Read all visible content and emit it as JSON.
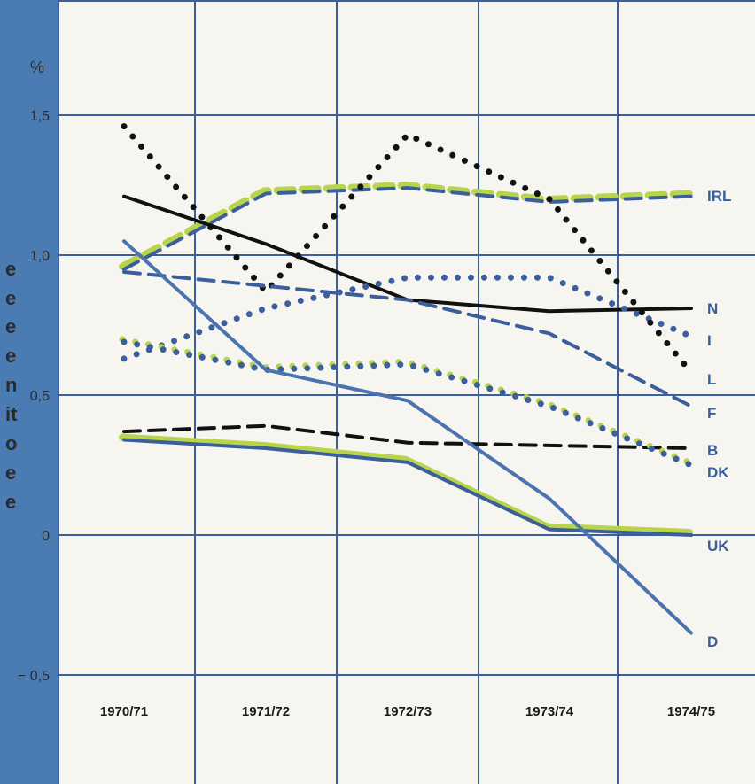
{
  "chart_data": {
    "type": "line",
    "title": "",
    "xlabel": "",
    "ylabel": "%",
    "categories": [
      "1970/71",
      "1971/72",
      "1972/73",
      "1973/74",
      "1974/75"
    ],
    "y_ticks": [
      "1,5",
      "1,0",
      "0,5",
      "0",
      "− 0,5"
    ],
    "ylim": [
      -0.5,
      1.5
    ],
    "grid": true,
    "series": [
      {
        "name": "IRL",
        "style": "dashed",
        "color": "#3b5f9c",
        "highlight": "#b8d44a",
        "values": [
          0.95,
          1.22,
          1.24,
          1.19,
          1.21
        ]
      },
      {
        "name": "N",
        "style": "solid",
        "color": "#111111",
        "values": [
          1.21,
          1.04,
          0.84,
          0.8,
          0.81
        ]
      },
      {
        "name": "I",
        "style": "dotted",
        "color": "#3b5f9c",
        "values": [
          0.63,
          0.81,
          0.92,
          0.92,
          0.71
        ]
      },
      {
        "name": "L",
        "style": "dotted",
        "color": "#111111",
        "values": [
          1.46,
          0.87,
          1.43,
          1.2,
          0.58
        ]
      },
      {
        "name": "F",
        "style": "dashed",
        "color": "#3b5f9c",
        "values": [
          0.94,
          0.89,
          0.84,
          0.72,
          0.46
        ]
      },
      {
        "name": "B",
        "style": "dashed",
        "color": "#111111",
        "values": [
          0.37,
          0.39,
          0.33,
          0.32,
          0.31
        ]
      },
      {
        "name": "DK",
        "style": "dotted",
        "color": "#3b5f9c",
        "highlight": "#b8d44a",
        "values": [
          0.69,
          0.59,
          0.61,
          0.46,
          0.25
        ]
      },
      {
        "name": "UK",
        "style": "solid",
        "color": "#3b5f9c",
        "highlight": "#b8d44a",
        "values": [
          0.34,
          0.31,
          0.26,
          0.02,
          0.0
        ]
      },
      {
        "name": "D",
        "style": "solid",
        "color": "#4a73b0",
        "values": [
          1.05,
          0.59,
          0.48,
          0.13,
          -0.35
        ]
      }
    ]
  },
  "side_band": {
    "fragments": [
      "e",
      "e",
      "e",
      "e",
      "n",
      "it",
      "o",
      "e",
      "e"
    ]
  },
  "colors": {
    "band": "#4a7bb3",
    "grid": "#3c5f9e",
    "accent_green": "#b8d44a"
  }
}
